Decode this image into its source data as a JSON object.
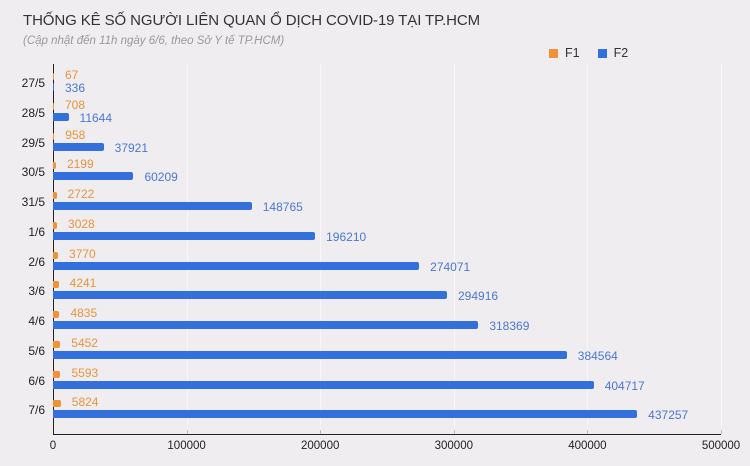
{
  "header": {
    "title": "THỐNG KÊ SỐ NGƯỜI LIÊN QUAN Ổ DỊCH COVID-19 TẠI TP.HCM",
    "subtitle": "(Cập nhật đến 11h ngày 6/6, theo Sở Y tế TP.HCM)"
  },
  "legend": [
    {
      "label": "F1",
      "color": "#f0923a"
    },
    {
      "label": "F2",
      "color": "#3470db"
    }
  ],
  "x_ticks": [
    "0",
    "100000",
    "200000",
    "300000",
    "400000",
    "500000"
  ],
  "chart_data": {
    "type": "bar",
    "orientation": "horizontal",
    "title": "THỐNG KÊ SỐ NGƯỜI LIÊN QUAN Ổ DỊCH COVID-19 TẠI TP.HCM",
    "subtitle": "(Cập nhật đến 11h ngày 6/6, theo Sở Y tế TP.HCM)",
    "xlabel": "",
    "ylabel": "",
    "xlim": [
      0,
      500000
    ],
    "x_ticks": [
      0,
      100000,
      200000,
      300000,
      400000,
      500000
    ],
    "grid": true,
    "legend_position": "top-right",
    "categories": [
      "27/5",
      "28/5",
      "29/5",
      "30/5",
      "31/5",
      "1/6",
      "2/6",
      "3/6",
      "4/6",
      "5/6",
      "6/6",
      "7/6"
    ],
    "series": [
      {
        "name": "F1",
        "color": "#f0923a",
        "values": [
          67,
          708,
          958,
          2199,
          2722,
          3028,
          3770,
          4241,
          4835,
          5452,
          5593,
          5824
        ]
      },
      {
        "name": "F2",
        "color": "#3470db",
        "values": [
          336,
          11644,
          37921,
          60209,
          148765,
          196210,
          274071,
          294916,
          318369,
          384564,
          404717,
          437257
        ]
      }
    ]
  }
}
